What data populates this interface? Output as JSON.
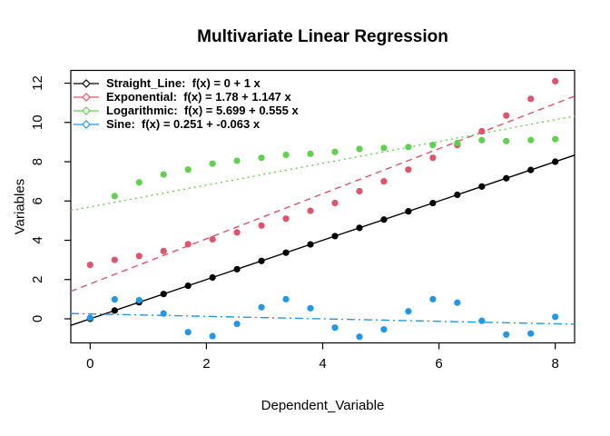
{
  "chart_data": {
    "type": "scatter",
    "title": "Multivariate Linear Regression",
    "xlabel": "Dependent_Variable",
    "ylabel": "Variables",
    "background_color": "#ffffff",
    "axis_color": "#000000",
    "grid": false,
    "legend_position": "top-left",
    "point_style": "filled-circle",
    "legend_marker": "line-with-open-diamond",
    "xlim": [
      -0.333,
      8.333
    ],
    "ylim": [
      -1.226,
      12.65
    ],
    "x_ticks": [
      0,
      2,
      4,
      6,
      8
    ],
    "y_ticks": [
      0,
      2,
      4,
      6,
      8,
      10,
      12
    ],
    "x": [
      0,
      0.421,
      0.842,
      1.263,
      1.684,
      2.105,
      2.526,
      2.947,
      3.368,
      3.789,
      4.211,
      4.632,
      5.053,
      5.474,
      5.895,
      6.316,
      6.737,
      7.158,
      7.579,
      8
    ],
    "series": [
      {
        "name": "Straight_Line",
        "legend_label": "Straight_Line:  f(x) = 0 + 1 x",
        "color": "#000000",
        "line_style": "solid",
        "fit": {
          "intercept": 0,
          "slope": 1
        },
        "values": [
          0,
          0.421,
          0.842,
          1.263,
          1.684,
          2.105,
          2.526,
          2.947,
          3.368,
          3.789,
          4.211,
          4.632,
          5.053,
          5.474,
          5.895,
          6.316,
          6.737,
          7.158,
          7.579,
          8
        ]
      },
      {
        "name": "Exponential",
        "legend_label": "Exponential:  f(x) = 1.78 + 1.147 x",
        "color": "#DF536B",
        "line_style": "dashed",
        "fit": {
          "intercept": 1.78,
          "slope": 1.147
        },
        "values": [
          2.75,
          3.0,
          3.2,
          3.45,
          3.8,
          4.05,
          4.4,
          4.75,
          5.1,
          5.5,
          5.9,
          6.5,
          7.0,
          7.6,
          8.2,
          8.85,
          9.55,
          10.35,
          11.2,
          12.1
        ]
      },
      {
        "name": "Logarithmic",
        "legend_label": "Logarithmic:  f(x) = 5.699 + 0.555 x",
        "color": "#61D04F",
        "line_style": "dotted",
        "fit": {
          "intercept": 5.699,
          "slope": 0.555
        },
        "values": [
          null,
          6.25,
          6.95,
          7.35,
          7.6,
          7.9,
          8.05,
          8.2,
          8.35,
          8.4,
          8.5,
          8.65,
          8.7,
          8.75,
          8.85,
          8.95,
          9.1,
          9.05,
          9.1,
          9.15
        ]
      },
      {
        "name": "Sine",
        "legend_label": "Sine:  f(x) = 0.251 + -0.063 x",
        "color": "#2297E6",
        "line_style": "dashdot",
        "fit": {
          "intercept": 0.251,
          "slope": -0.063
        },
        "values": [
          0.05,
          0.99,
          0.95,
          0.27,
          -0.68,
          -0.88,
          -0.26,
          0.59,
          1.0,
          0.54,
          -0.45,
          -0.91,
          -0.54,
          0.38,
          1.0,
          0.82,
          -0.1,
          -0.8,
          -0.75,
          0.1
        ]
      }
    ]
  }
}
